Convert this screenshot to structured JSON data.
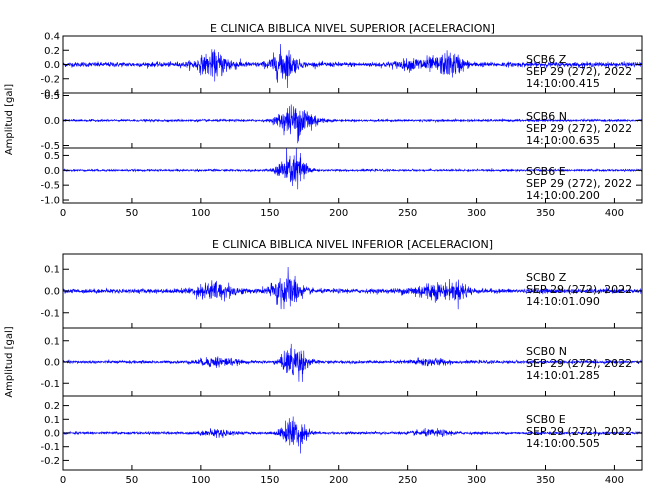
{
  "chart_data": [
    {
      "type": "line",
      "title": "E CLINICA BIBLICA NIVEL SUPERIOR [ACELERACION]",
      "ylabel": "Amplitud [gal]",
      "xlabel": "",
      "xlim": [
        0,
        420
      ],
      "xticks": [
        0,
        50,
        100,
        150,
        200,
        250,
        300,
        350,
        400
      ],
      "line_color": "#0000ff",
      "grid": false,
      "panels": [
        {
          "station": "SCB6",
          "component": "Z",
          "date": "SEP 29 (272), 2022",
          "time": "14:10:00.415",
          "ylim": [
            -0.4,
            0.4
          ],
          "yticks": [
            -0.4,
            -0.2,
            0.0,
            0.2,
            0.4
          ],
          "yticklabels": [
            "-0.4",
            "-0.2",
            "0.0",
            "0.2",
            "0.4"
          ],
          "noise": 0.03,
          "bursts": [
            [
              110,
              9,
              0.14
            ],
            [
              160,
              6,
              0.2
            ],
            [
              262,
              13,
              0.07
            ],
            [
              282,
              6,
              0.12
            ]
          ]
        },
        {
          "station": "SCB6",
          "component": "N",
          "date": "SEP 29 (272), 2022",
          "time": "14:10:00.635",
          "ylim": [
            -0.55,
            0.55
          ],
          "yticks": [
            -0.5,
            0.0,
            0.5
          ],
          "yticklabels": [
            "-0.5",
            "0.0",
            "0.5"
          ],
          "noise": 0.02,
          "bursts": [
            [
              172,
              8,
              0.3
            ],
            [
              160,
              4,
              0.1
            ]
          ]
        },
        {
          "station": "SCB6",
          "component": "E",
          "date": "SEP 29 (272), 2022",
          "time": "14:10:00.200",
          "ylim": [
            -1.1,
            0.75
          ],
          "yticks": [
            -1.0,
            -0.5,
            0.0,
            0.5
          ],
          "yticklabels": [
            "-1.0",
            "-0.5",
            "0.0",
            "0.5"
          ],
          "noise": 0.03,
          "bursts": [
            [
              170,
              5,
              0.55
            ],
            [
              160,
              4,
              0.3
            ]
          ]
        }
      ]
    },
    {
      "type": "line",
      "title": "E CLINICA BIBLICA NIVEL INFERIOR [ACELERACION]",
      "ylabel": "Amplitud [gal]",
      "xlabel": "",
      "xlim": [
        0,
        420
      ],
      "xticks": [
        0,
        50,
        100,
        150,
        200,
        250,
        300,
        350,
        400
      ],
      "line_color": "#0000ff",
      "grid": false,
      "panels": [
        {
          "station": "SCB0",
          "component": "Z",
          "date": "SEP 29 (272), 2022",
          "time": "14:10:01.090",
          "ylim": [
            -0.17,
            0.17
          ],
          "yticks": [
            -0.1,
            0.0,
            0.1
          ],
          "yticklabels": [
            "-0.1",
            "0.0",
            "0.1"
          ],
          "noise": 0.009,
          "bursts": [
            [
              110,
              10,
              0.035
            ],
            [
              162,
              7,
              0.075
            ],
            [
              268,
              12,
              0.03
            ],
            [
              288,
              5,
              0.028
            ]
          ]
        },
        {
          "station": "SCB0",
          "component": "N",
          "date": "SEP 29 (272), 2022",
          "time": "14:10:01.285",
          "ylim": [
            -0.16,
            0.16
          ],
          "yticks": [
            -0.1,
            0.0,
            0.1
          ],
          "yticklabels": [
            "-0.1",
            "0.0",
            "0.1"
          ],
          "noise": 0.006,
          "bursts": [
            [
              112,
              9,
              0.02
            ],
            [
              168,
              6,
              0.075
            ],
            [
              265,
              10,
              0.014
            ]
          ]
        },
        {
          "station": "SCB0",
          "component": "E",
          "date": "SEP 29 (272), 2022",
          "time": "14:10:00.505",
          "ylim": [
            -0.27,
            0.27
          ],
          "yticks": [
            -0.2,
            -0.1,
            0.0,
            0.1,
            0.2
          ],
          "yticklabels": [
            "-0.2",
            "-0.1",
            "0.0",
            "0.1",
            "0.2"
          ],
          "noise": 0.008,
          "bursts": [
            [
              112,
              8,
              0.022
            ],
            [
              168,
              6,
              0.11
            ],
            [
              268,
              10,
              0.018
            ]
          ]
        }
      ]
    }
  ]
}
